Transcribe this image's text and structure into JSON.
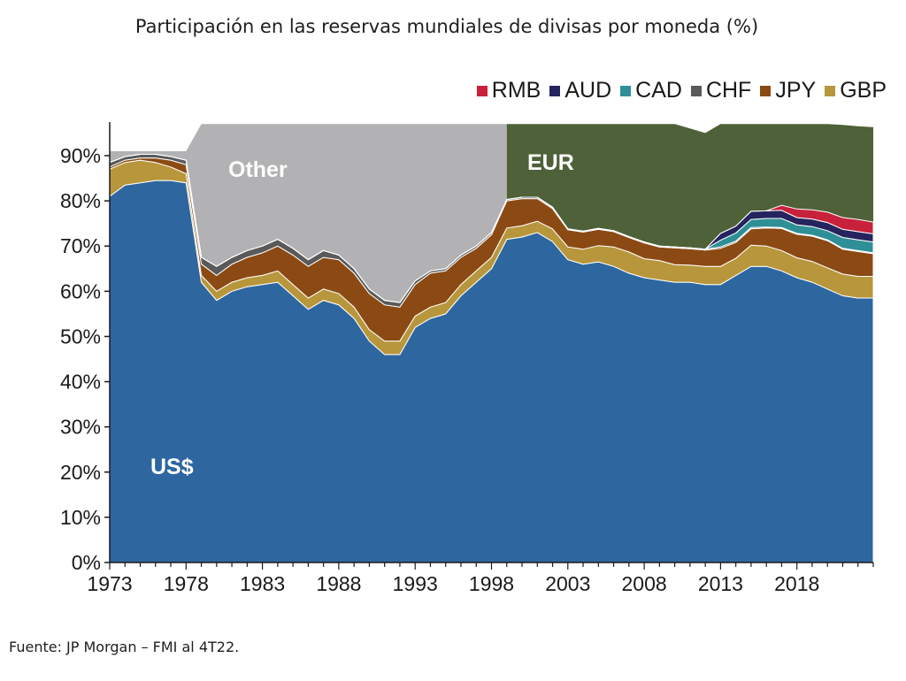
{
  "chart_data": {
    "type": "area",
    "title": "Participación en las reservas mundiales de divisas por moneda (%)",
    "xlabel": "",
    "ylabel": "",
    "xlim": [
      1973,
      2023
    ],
    "ylim": [
      0,
      100
    ],
    "x_ticks": [
      "1973",
      "1978",
      "1983",
      "1988",
      "1993",
      "1998",
      "2003",
      "2008",
      "2013",
      "2018"
    ],
    "y_ticks": [
      "0%",
      "10%",
      "20%",
      "30%",
      "40%",
      "50%",
      "60%",
      "70%",
      "80%",
      "90%"
    ],
    "legend": [
      "RMB",
      "AUD",
      "CAD",
      "CHF",
      "JPY",
      "GBP"
    ],
    "legend_position": "top-right",
    "region_labels": {
      "usd": "US$",
      "eur": "EUR",
      "other": "Other"
    },
    "series_order_bottom_to_top": [
      "US$",
      "GBP",
      "JPY",
      "CHF",
      "CAD",
      "AUD",
      "RMB",
      "EUR",
      "Other"
    ],
    "colors": {
      "US$": "#2e67a0",
      "GBP": "#b8963c",
      "JPY": "#8b4a14",
      "CHF": "#5a5a5a",
      "CAD": "#2f8f96",
      "AUD": "#26245e",
      "RMB": "#c8213b",
      "EUR": "#4f6138",
      "Other": "#b2b2b4"
    },
    "x": [
      1973,
      1974,
      1975,
      1976,
      1977,
      1978,
      1979,
      1980,
      1981,
      1982,
      1983,
      1984,
      1985,
      1986,
      1987,
      1988,
      1989,
      1990,
      1991,
      1992,
      1993,
      1994,
      1995,
      1996,
      1997,
      1998,
      1999,
      2000,
      2001,
      2002,
      2003,
      2004,
      2005,
      2006,
      2007,
      2008,
      2009,
      2010,
      2011,
      2012,
      2013,
      2014,
      2015,
      2016,
      2017,
      2018,
      2019,
      2020,
      2021,
      2022,
      2023
    ],
    "series": [
      {
        "name": "US$",
        "values": [
          81,
          83.5,
          84,
          84.5,
          84.5,
          84,
          62,
          58,
          60,
          61,
          61.5,
          62,
          59,
          56,
          58,
          57,
          54,
          49,
          46,
          46,
          52,
          54,
          55,
          59,
          62,
          65,
          71.5,
          72,
          73,
          71,
          67,
          66,
          66.5,
          65.5,
          64,
          63,
          62.5,
          62,
          62,
          61.5,
          61.5,
          63.5,
          65.5,
          65.5,
          64.5,
          63,
          62,
          60.5,
          59,
          58.5,
          58.5
        ]
      },
      {
        "name": "GBP",
        "values": [
          6,
          5,
          5,
          4,
          3,
          2,
          1.5,
          2,
          2,
          2,
          2,
          2.5,
          2.5,
          2.5,
          2.5,
          2.5,
          2.5,
          2.5,
          3,
          3,
          2.5,
          2.5,
          2.5,
          2.5,
          2.5,
          2.5,
          2.5,
          2.5,
          2.5,
          2.8,
          2.8,
          3.3,
          3.6,
          4.3,
          4.7,
          4.2,
          4.3,
          3.9,
          3.8,
          4,
          4,
          3.8,
          4.7,
          4.5,
          4.5,
          4.4,
          4.6,
          4.7,
          4.8,
          4.8,
          4.8
        ]
      },
      {
        "name": "JPY",
        "values": [
          0.5,
          0.5,
          0.5,
          1,
          1.5,
          2,
          2.5,
          3.5,
          4,
          4.5,
          5,
          5.5,
          6.5,
          7,
          7,
          7.5,
          7.5,
          8,
          8,
          7.5,
          7,
          7.5,
          7,
          6,
          5,
          5,
          6,
          6,
          5,
          4.5,
          3.8,
          3.8,
          3.6,
          3.4,
          3.2,
          3.5,
          3,
          3.7,
          3.6,
          3.6,
          4,
          3.5,
          3.6,
          4,
          4.9,
          5.2,
          5.6,
          6,
          5.5,
          5.5,
          5
        ]
      },
      {
        "name": "CHF",
        "values": [
          1,
          0.8,
          0.8,
          0.8,
          0.8,
          1,
          1.5,
          2,
          1.5,
          1.5,
          1.5,
          1.5,
          1.5,
          1.5,
          1.5,
          1,
          1,
          1,
          1,
          1,
          0.8,
          0.5,
          0.5,
          0.5,
          0.5,
          0.5,
          0.3,
          0.3,
          0.3,
          0.3,
          0.2,
          0.2,
          0.2,
          0.2,
          0.2,
          0.2,
          0.2,
          0.2,
          0.2,
          0.2,
          0.3,
          0.3,
          0.3,
          0.2,
          0.2,
          0.2,
          0.2,
          0.2,
          0.2,
          0.2,
          0.2
        ]
      },
      {
        "name": "CAD",
        "values": [
          0,
          0,
          0,
          0,
          0,
          0,
          0,
          0,
          0,
          0,
          0,
          0,
          0,
          0,
          0,
          0,
          0,
          0,
          0,
          0,
          0,
          0,
          0,
          0,
          0,
          0,
          0,
          0,
          0,
          0,
          0,
          0,
          0,
          0,
          0,
          0,
          0,
          0,
          0,
          0,
          1.5,
          1.8,
          1.8,
          1.9,
          2,
          1.9,
          1.9,
          2,
          2.4,
          2.4,
          2.4
        ]
      },
      {
        "name": "AUD",
        "values": [
          0,
          0,
          0,
          0,
          0,
          0,
          0,
          0,
          0,
          0,
          0,
          0,
          0,
          0,
          0,
          0,
          0,
          0,
          0,
          0,
          0,
          0,
          0,
          0,
          0,
          0,
          0,
          0,
          0,
          0,
          0,
          0,
          0,
          0,
          0,
          0,
          0,
          0,
          0,
          0,
          1.5,
          1.5,
          1.8,
          1.7,
          1.8,
          1.6,
          1.7,
          1.8,
          1.8,
          1.8,
          1.8
        ]
      },
      {
        "name": "RMB",
        "values": [
          0,
          0,
          0,
          0,
          0,
          0,
          0,
          0,
          0,
          0,
          0,
          0,
          0,
          0,
          0,
          0,
          0,
          0,
          0,
          0,
          0,
          0,
          0,
          0,
          0,
          0,
          0,
          0,
          0,
          0,
          0,
          0,
          0,
          0,
          0,
          0,
          0,
          0,
          0,
          0,
          0,
          0,
          0,
          0,
          1.1,
          1.9,
          2,
          2.3,
          2.6,
          2.7,
          2.6
        ]
      },
      {
        "name": "EUR",
        "values": [
          0,
          0,
          0,
          0,
          0,
          0,
          0,
          0,
          0,
          0,
          0,
          0,
          0,
          0,
          0,
          0,
          0,
          0,
          0,
          0,
          0,
          0,
          0,
          0,
          0,
          0,
          0,
          0,
          0,
          0,
          0,
          0,
          0,
          0,
          0,
          0,
          0,
          0,
          0,
          0,
          0,
          0,
          0,
          0,
          0,
          0,
          0,
          0,
          0,
          0,
          0
        ]
      },
      {
        "name": "Other",
        "values": [
          0,
          0,
          0,
          0,
          0,
          0,
          0,
          0,
          0,
          0,
          0,
          0,
          0,
          0,
          0,
          0,
          0,
          0,
          0,
          0,
          0,
          0,
          0,
          0,
          0,
          0,
          0,
          0,
          0,
          0,
          0,
          0,
          0,
          0,
          0,
          0,
          0,
          0,
          0,
          0,
          0,
          0,
          0,
          0,
          0,
          0,
          0,
          0,
          0,
          0,
          0
        ]
      }
    ],
    "eur_top": [
      null,
      null,
      null,
      null,
      null,
      null,
      null,
      null,
      null,
      null,
      null,
      null,
      null,
      null,
      null,
      null,
      null,
      null,
      null,
      null,
      null,
      null,
      null,
      null,
      null,
      null,
      97,
      97,
      97,
      97,
      97,
      97,
      97,
      97,
      97,
      97,
      97,
      97,
      96,
      95,
      97,
      97,
      97,
      97,
      97,
      97,
      97,
      97,
      96.8,
      96.5,
      96.3
    ],
    "other_top": [
      91,
      91,
      91,
      91,
      91,
      91,
      97,
      97,
      97,
      97,
      97,
      97,
      97,
      97,
      97,
      97,
      97,
      97,
      97,
      97,
      97,
      97,
      97,
      97,
      97,
      97,
      null,
      null,
      null,
      null,
      null,
      null,
      null,
      null,
      null,
      null,
      null,
      null,
      null,
      null,
      null,
      null,
      null,
      null,
      null,
      null,
      null,
      null,
      null,
      null,
      null
    ]
  },
  "source_note": "Fuente:  JP Morgan – FMI al 4T22."
}
